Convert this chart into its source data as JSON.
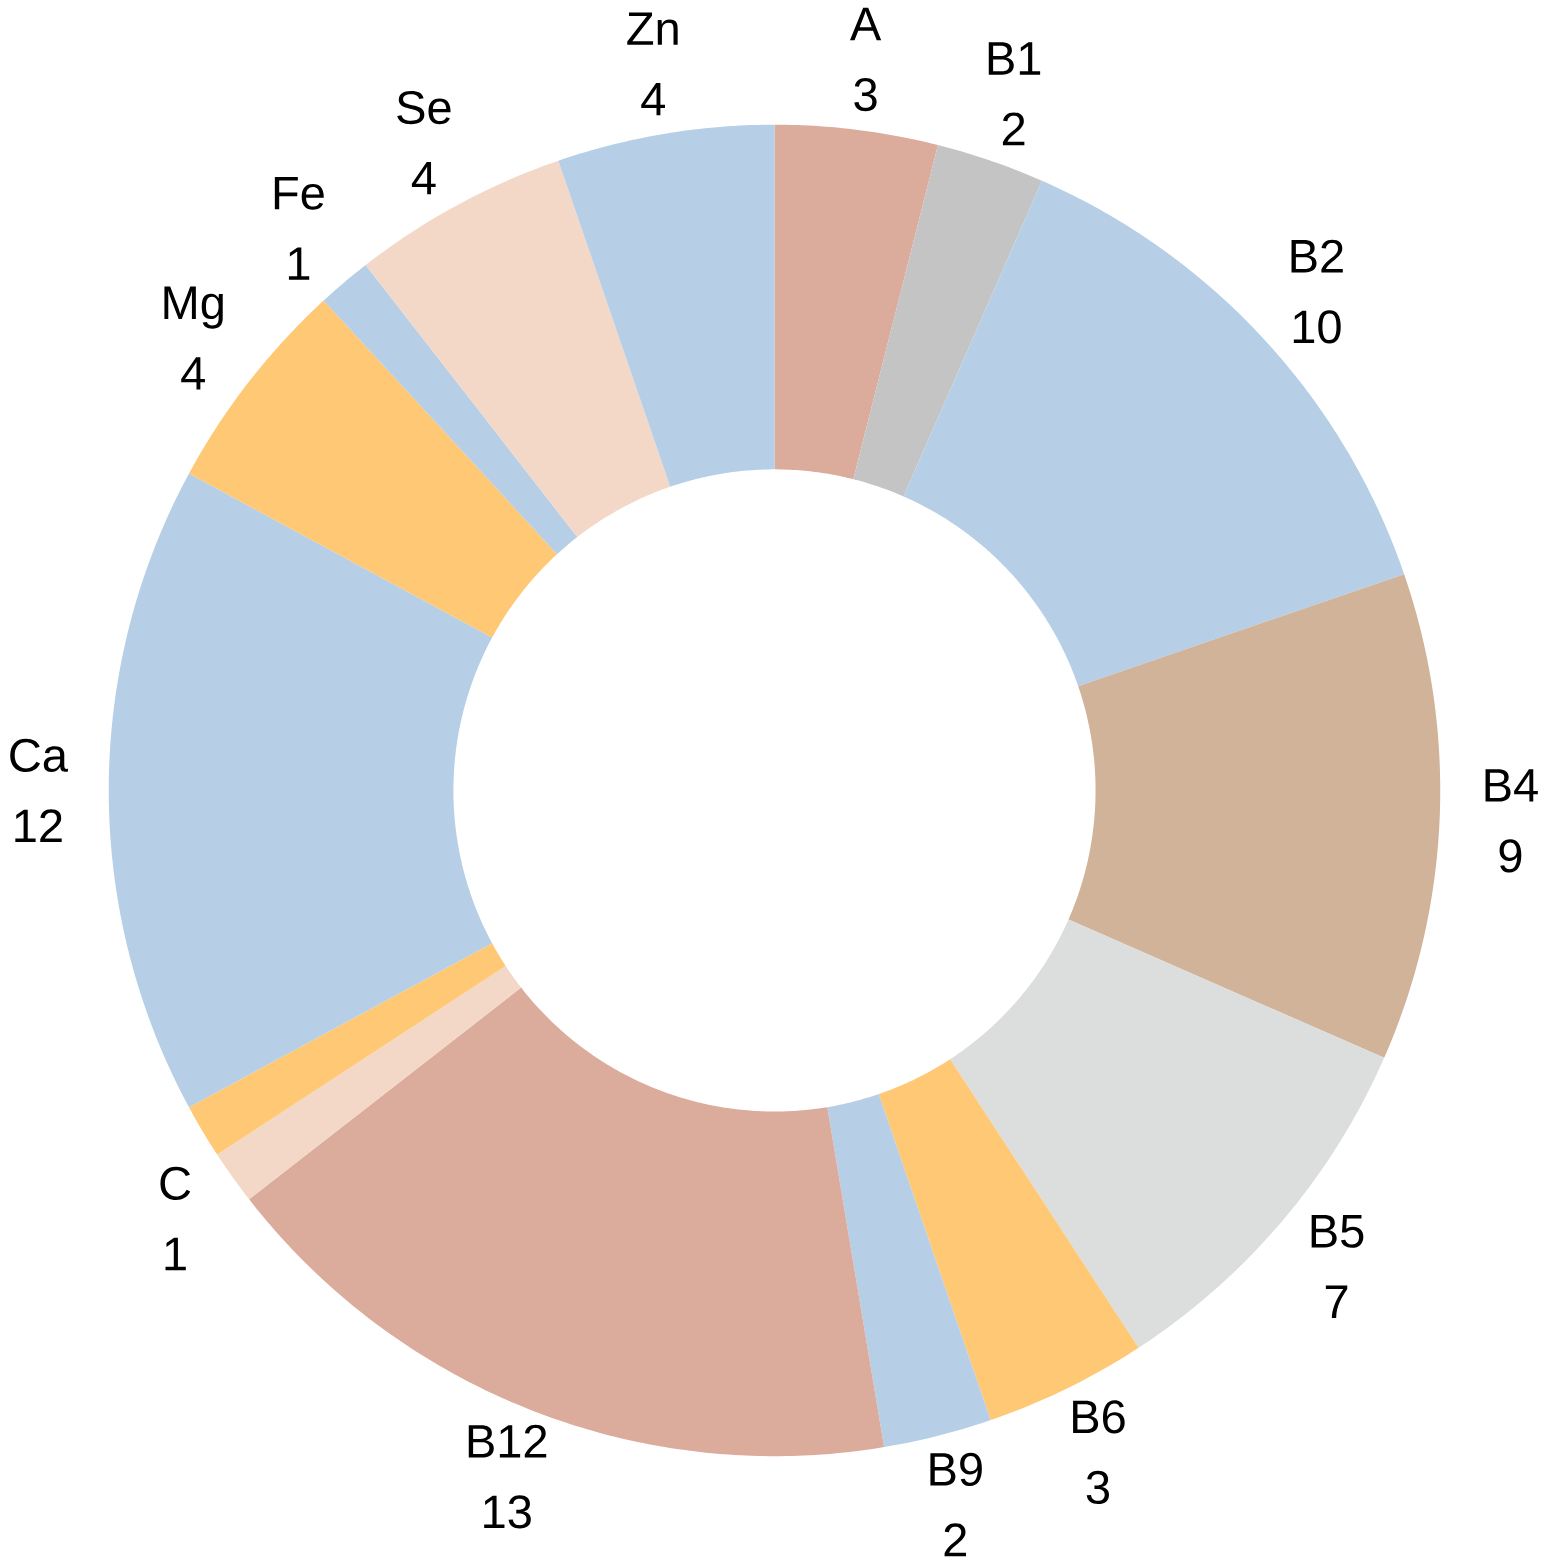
{
  "chart_data": {
    "type": "donut",
    "categories": [
      "A",
      "B1",
      "B2",
      "B4",
      "B5",
      "B6",
      "B9",
      "B12",
      "C",
      null,
      "Ca",
      "Mg",
      "Fe",
      "Se",
      "Zn"
    ],
    "values": [
      3,
      2,
      10,
      9,
      7,
      3,
      2,
      13,
      1,
      1,
      12,
      4,
      1,
      4,
      4
    ],
    "value_labels": [
      "3",
      "2",
      "10",
      "9",
      "7",
      "3",
      "2",
      "13",
      "1",
      null,
      "12",
      "4",
      "1",
      "4",
      "4"
    ],
    "colors": [
      "#dbab9c",
      "#c4c4c4",
      "#b6cfe6",
      "#d0b398",
      "#dcdddd",
      "#fec875",
      "#b6cfe6",
      "#dbab9c",
      "#f3d8c7",
      "#fec875",
      "#b6cfe6",
      "#fec875",
      "#b6cfe6",
      "#f3d8c7",
      "#b6cfe6"
    ]
  }
}
